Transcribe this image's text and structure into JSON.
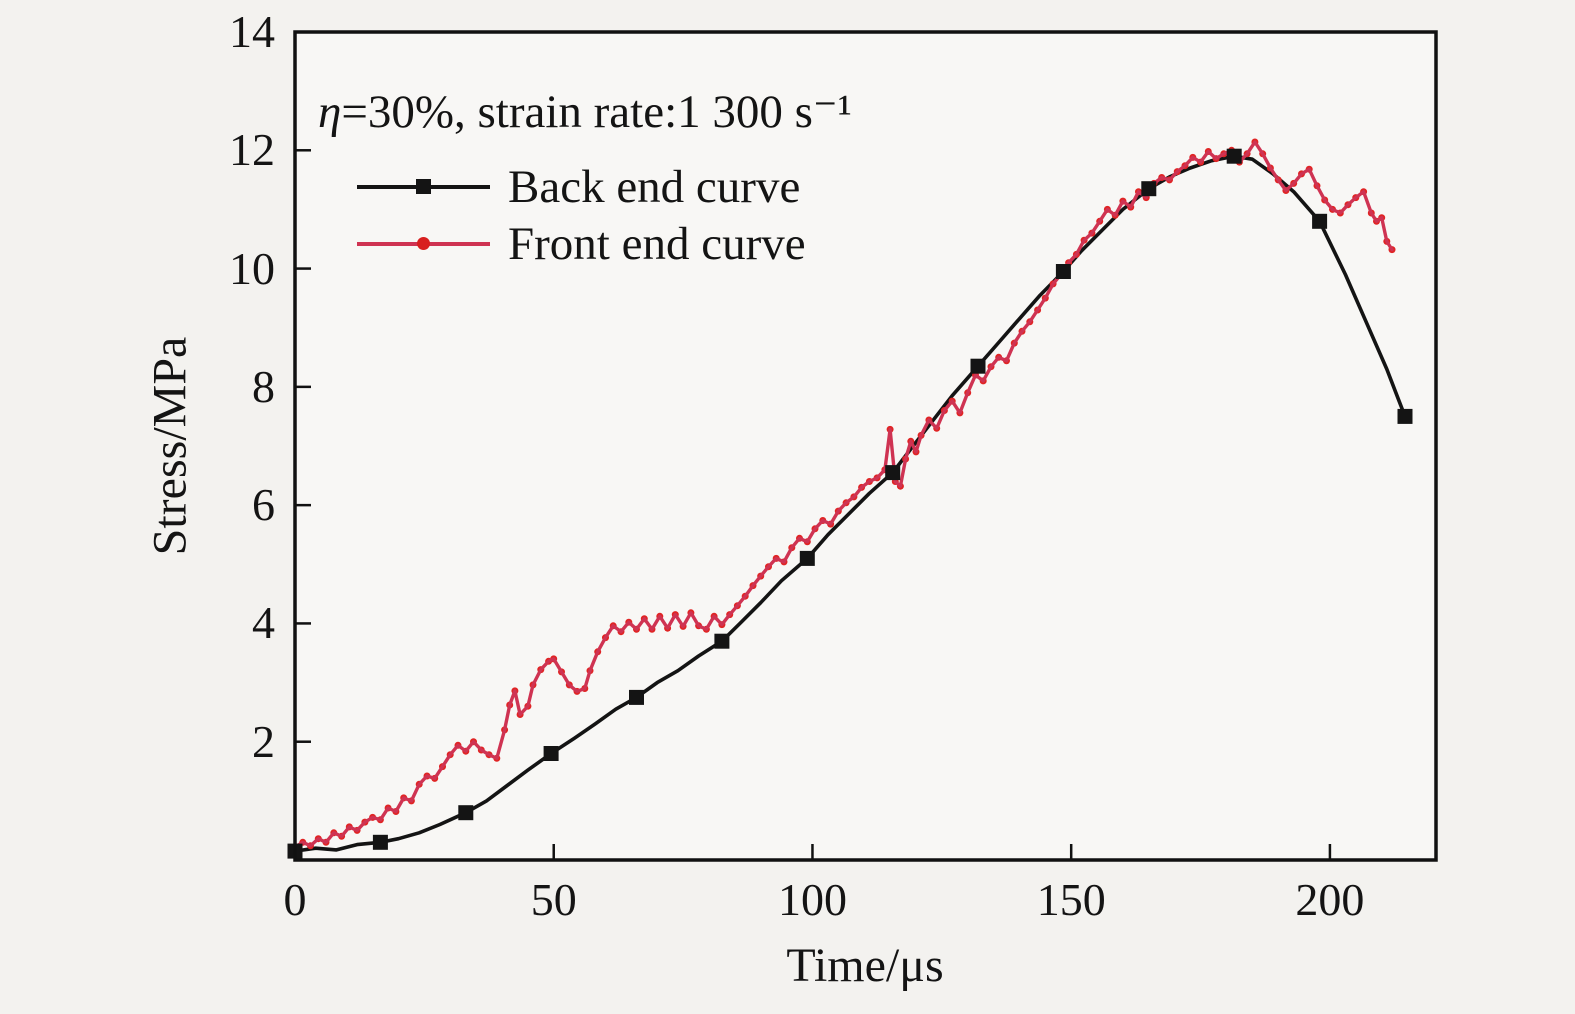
{
  "colors": {
    "background": "#f3f2ef",
    "plot_background": "#f8f7f5",
    "axis": "#111111",
    "back_curve": "#141414",
    "front_curve": "#cf3352",
    "front_marker": "#e02424"
  },
  "chart_data": {
    "type": "line",
    "annotation": {
      "eta": "η",
      "rest": "=30%, strain rate:1 300 s⁻¹"
    },
    "xlabel": "Time/μs",
    "ylabel": "Stress/MPa",
    "xlim": [
      0,
      220.5
    ],
    "ylim": [
      0,
      14
    ],
    "xticks": [
      0,
      50,
      100,
      150,
      200
    ],
    "yticks": [
      2,
      4,
      6,
      8,
      10,
      12,
      14
    ],
    "grid": false,
    "legend_position": "upper-left-inside",
    "series": [
      {
        "name": "Back end curve",
        "color": "#141414",
        "marker": "square",
        "marker_size": 15,
        "points": [
          [
            0,
            0.15
          ],
          [
            4,
            0.2
          ],
          [
            8,
            0.17
          ],
          [
            12,
            0.26
          ],
          [
            16.5,
            0.3
          ],
          [
            20,
            0.36
          ],
          [
            24,
            0.46
          ],
          [
            28,
            0.6
          ],
          [
            33,
            0.8
          ],
          [
            37,
            1.0
          ],
          [
            41,
            1.26
          ],
          [
            45,
            1.52
          ],
          [
            49.5,
            1.8
          ],
          [
            54,
            2.06
          ],
          [
            58,
            2.3
          ],
          [
            62,
            2.55
          ],
          [
            66,
            2.75
          ],
          [
            70,
            3.0
          ],
          [
            74,
            3.2
          ],
          [
            78,
            3.45
          ],
          [
            82.5,
            3.7
          ],
          [
            86,
            4.0
          ],
          [
            90,
            4.35
          ],
          [
            94,
            4.72
          ],
          [
            99,
            5.1
          ],
          [
            103,
            5.5
          ],
          [
            107,
            5.85
          ],
          [
            111,
            6.2
          ],
          [
            115.5,
            6.55
          ],
          [
            119,
            6.95
          ],
          [
            123,
            7.4
          ],
          [
            127,
            7.85
          ],
          [
            132,
            8.35
          ],
          [
            136,
            8.75
          ],
          [
            140,
            9.15
          ],
          [
            144,
            9.55
          ],
          [
            148.5,
            9.95
          ],
          [
            152,
            10.3
          ],
          [
            156,
            10.65
          ],
          [
            160,
            11.0
          ],
          [
            165,
            11.35
          ],
          [
            169,
            11.55
          ],
          [
            173,
            11.7
          ],
          [
            177,
            11.82
          ],
          [
            181.5,
            11.9
          ],
          [
            185,
            11.85
          ],
          [
            189,
            11.6
          ],
          [
            193,
            11.3
          ],
          [
            198,
            10.8
          ],
          [
            203,
            9.9
          ],
          [
            207,
            9.1
          ],
          [
            211,
            8.3
          ],
          [
            214.5,
            7.5
          ]
        ],
        "marker_points": [
          [
            0,
            0.15
          ],
          [
            16.5,
            0.3
          ],
          [
            33,
            0.8
          ],
          [
            49.5,
            1.8
          ],
          [
            66,
            2.75
          ],
          [
            82.5,
            3.7
          ],
          [
            99,
            5.1
          ],
          [
            115.5,
            6.55
          ],
          [
            132,
            8.35
          ],
          [
            148.5,
            9.95
          ],
          [
            165,
            11.35
          ],
          [
            181.5,
            11.9
          ],
          [
            198,
            10.8
          ],
          [
            214.5,
            7.5
          ]
        ]
      },
      {
        "name": "Front end curve",
        "color": "#cf3352",
        "marker": "circle",
        "marker_color": "#e02424",
        "marker_size": 7,
        "points": [
          [
            0,
            0.22
          ],
          [
            1.5,
            0.3
          ],
          [
            3,
            0.24
          ],
          [
            4.5,
            0.36
          ],
          [
            6,
            0.3
          ],
          [
            7.5,
            0.46
          ],
          [
            9,
            0.4
          ],
          [
            10.5,
            0.56
          ],
          [
            12,
            0.5
          ],
          [
            13.5,
            0.64
          ],
          [
            15,
            0.72
          ],
          [
            16.5,
            0.68
          ],
          [
            18,
            0.88
          ],
          [
            19.5,
            0.82
          ],
          [
            21,
            1.05
          ],
          [
            22.5,
            1.0
          ],
          [
            24,
            1.28
          ],
          [
            25.5,
            1.42
          ],
          [
            27,
            1.38
          ],
          [
            28.5,
            1.58
          ],
          [
            30,
            1.78
          ],
          [
            31.5,
            1.94
          ],
          [
            33,
            1.84
          ],
          [
            34.5,
            2.0
          ],
          [
            36,
            1.86
          ],
          [
            37.5,
            1.78
          ],
          [
            39,
            1.72
          ],
          [
            40.5,
            2.2
          ],
          [
            41.5,
            2.62
          ],
          [
            42.5,
            2.86
          ],
          [
            43.5,
            2.46
          ],
          [
            45,
            2.6
          ],
          [
            46,
            2.96
          ],
          [
            47.5,
            3.22
          ],
          [
            49,
            3.36
          ],
          [
            50,
            3.4
          ],
          [
            51.5,
            3.18
          ],
          [
            53,
            2.96
          ],
          [
            54.5,
            2.85
          ],
          [
            56,
            2.9
          ],
          [
            57,
            3.2
          ],
          [
            58.5,
            3.52
          ],
          [
            60,
            3.76
          ],
          [
            61.5,
            3.96
          ],
          [
            63,
            3.86
          ],
          [
            64.5,
            4.02
          ],
          [
            66,
            3.9
          ],
          [
            67.5,
            4.08
          ],
          [
            69,
            3.9
          ],
          [
            70.5,
            4.12
          ],
          [
            72,
            3.92
          ],
          [
            73.5,
            4.15
          ],
          [
            75,
            3.95
          ],
          [
            76.5,
            4.18
          ],
          [
            78,
            3.96
          ],
          [
            79.5,
            3.9
          ],
          [
            81,
            4.12
          ],
          [
            82.5,
            3.98
          ],
          [
            84,
            4.15
          ],
          [
            85.5,
            4.3
          ],
          [
            87,
            4.46
          ],
          [
            88.5,
            4.64
          ],
          [
            90,
            4.8
          ],
          [
            91.5,
            4.96
          ],
          [
            93,
            5.1
          ],
          [
            94.5,
            5.04
          ],
          [
            96,
            5.28
          ],
          [
            97.5,
            5.44
          ],
          [
            99,
            5.38
          ],
          [
            100.5,
            5.6
          ],
          [
            102,
            5.74
          ],
          [
            103.5,
            5.68
          ],
          [
            105,
            5.9
          ],
          [
            106.5,
            6.04
          ],
          [
            108,
            6.14
          ],
          [
            109.5,
            6.3
          ],
          [
            111,
            6.4
          ],
          [
            112.5,
            6.46
          ],
          [
            114,
            6.6
          ],
          [
            115,
            7.28
          ],
          [
            116,
            6.4
          ],
          [
            117,
            6.32
          ],
          [
            118,
            6.78
          ],
          [
            119,
            7.08
          ],
          [
            120,
            6.9
          ],
          [
            121,
            7.18
          ],
          [
            122.5,
            7.44
          ],
          [
            124,
            7.3
          ],
          [
            125.5,
            7.6
          ],
          [
            127,
            7.76
          ],
          [
            128.5,
            7.56
          ],
          [
            130,
            7.9
          ],
          [
            131.5,
            8.2
          ],
          [
            133,
            8.1
          ],
          [
            134.5,
            8.34
          ],
          [
            136,
            8.5
          ],
          [
            137.5,
            8.44
          ],
          [
            139,
            8.74
          ],
          [
            140.5,
            8.94
          ],
          [
            142,
            9.1
          ],
          [
            143.5,
            9.3
          ],
          [
            145,
            9.5
          ],
          [
            146.5,
            9.74
          ],
          [
            148,
            9.9
          ],
          [
            149.5,
            10.1
          ],
          [
            151,
            10.24
          ],
          [
            152.5,
            10.48
          ],
          [
            154,
            10.6
          ],
          [
            155.5,
            10.8
          ],
          [
            157,
            11.0
          ],
          [
            158.5,
            10.9
          ],
          [
            160,
            11.14
          ],
          [
            161.5,
            11.04
          ],
          [
            163,
            11.3
          ],
          [
            164.5,
            11.2
          ],
          [
            166,
            11.44
          ],
          [
            167.5,
            11.54
          ],
          [
            169,
            11.5
          ],
          [
            170.5,
            11.64
          ],
          [
            172,
            11.74
          ],
          [
            173.5,
            11.88
          ],
          [
            175,
            11.8
          ],
          [
            176.5,
            11.98
          ],
          [
            178,
            11.86
          ],
          [
            179.5,
            11.94
          ],
          [
            181,
            12.0
          ],
          [
            182.5,
            11.8
          ],
          [
            184,
            11.94
          ],
          [
            185.5,
            12.14
          ],
          [
            187,
            11.94
          ],
          [
            188.5,
            11.7
          ],
          [
            190,
            11.5
          ],
          [
            191.5,
            11.32
          ],
          [
            193,
            11.44
          ],
          [
            194.5,
            11.6
          ],
          [
            196,
            11.68
          ],
          [
            197.5,
            11.4
          ],
          [
            199,
            11.16
          ],
          [
            200.5,
            11.0
          ],
          [
            202,
            10.94
          ],
          [
            203.5,
            11.08
          ],
          [
            205,
            11.2
          ],
          [
            206.5,
            11.3
          ],
          [
            208,
            10.94
          ],
          [
            209,
            10.8
          ],
          [
            210,
            10.86
          ],
          [
            211,
            10.46
          ],
          [
            212,
            10.32
          ]
        ]
      }
    ]
  }
}
